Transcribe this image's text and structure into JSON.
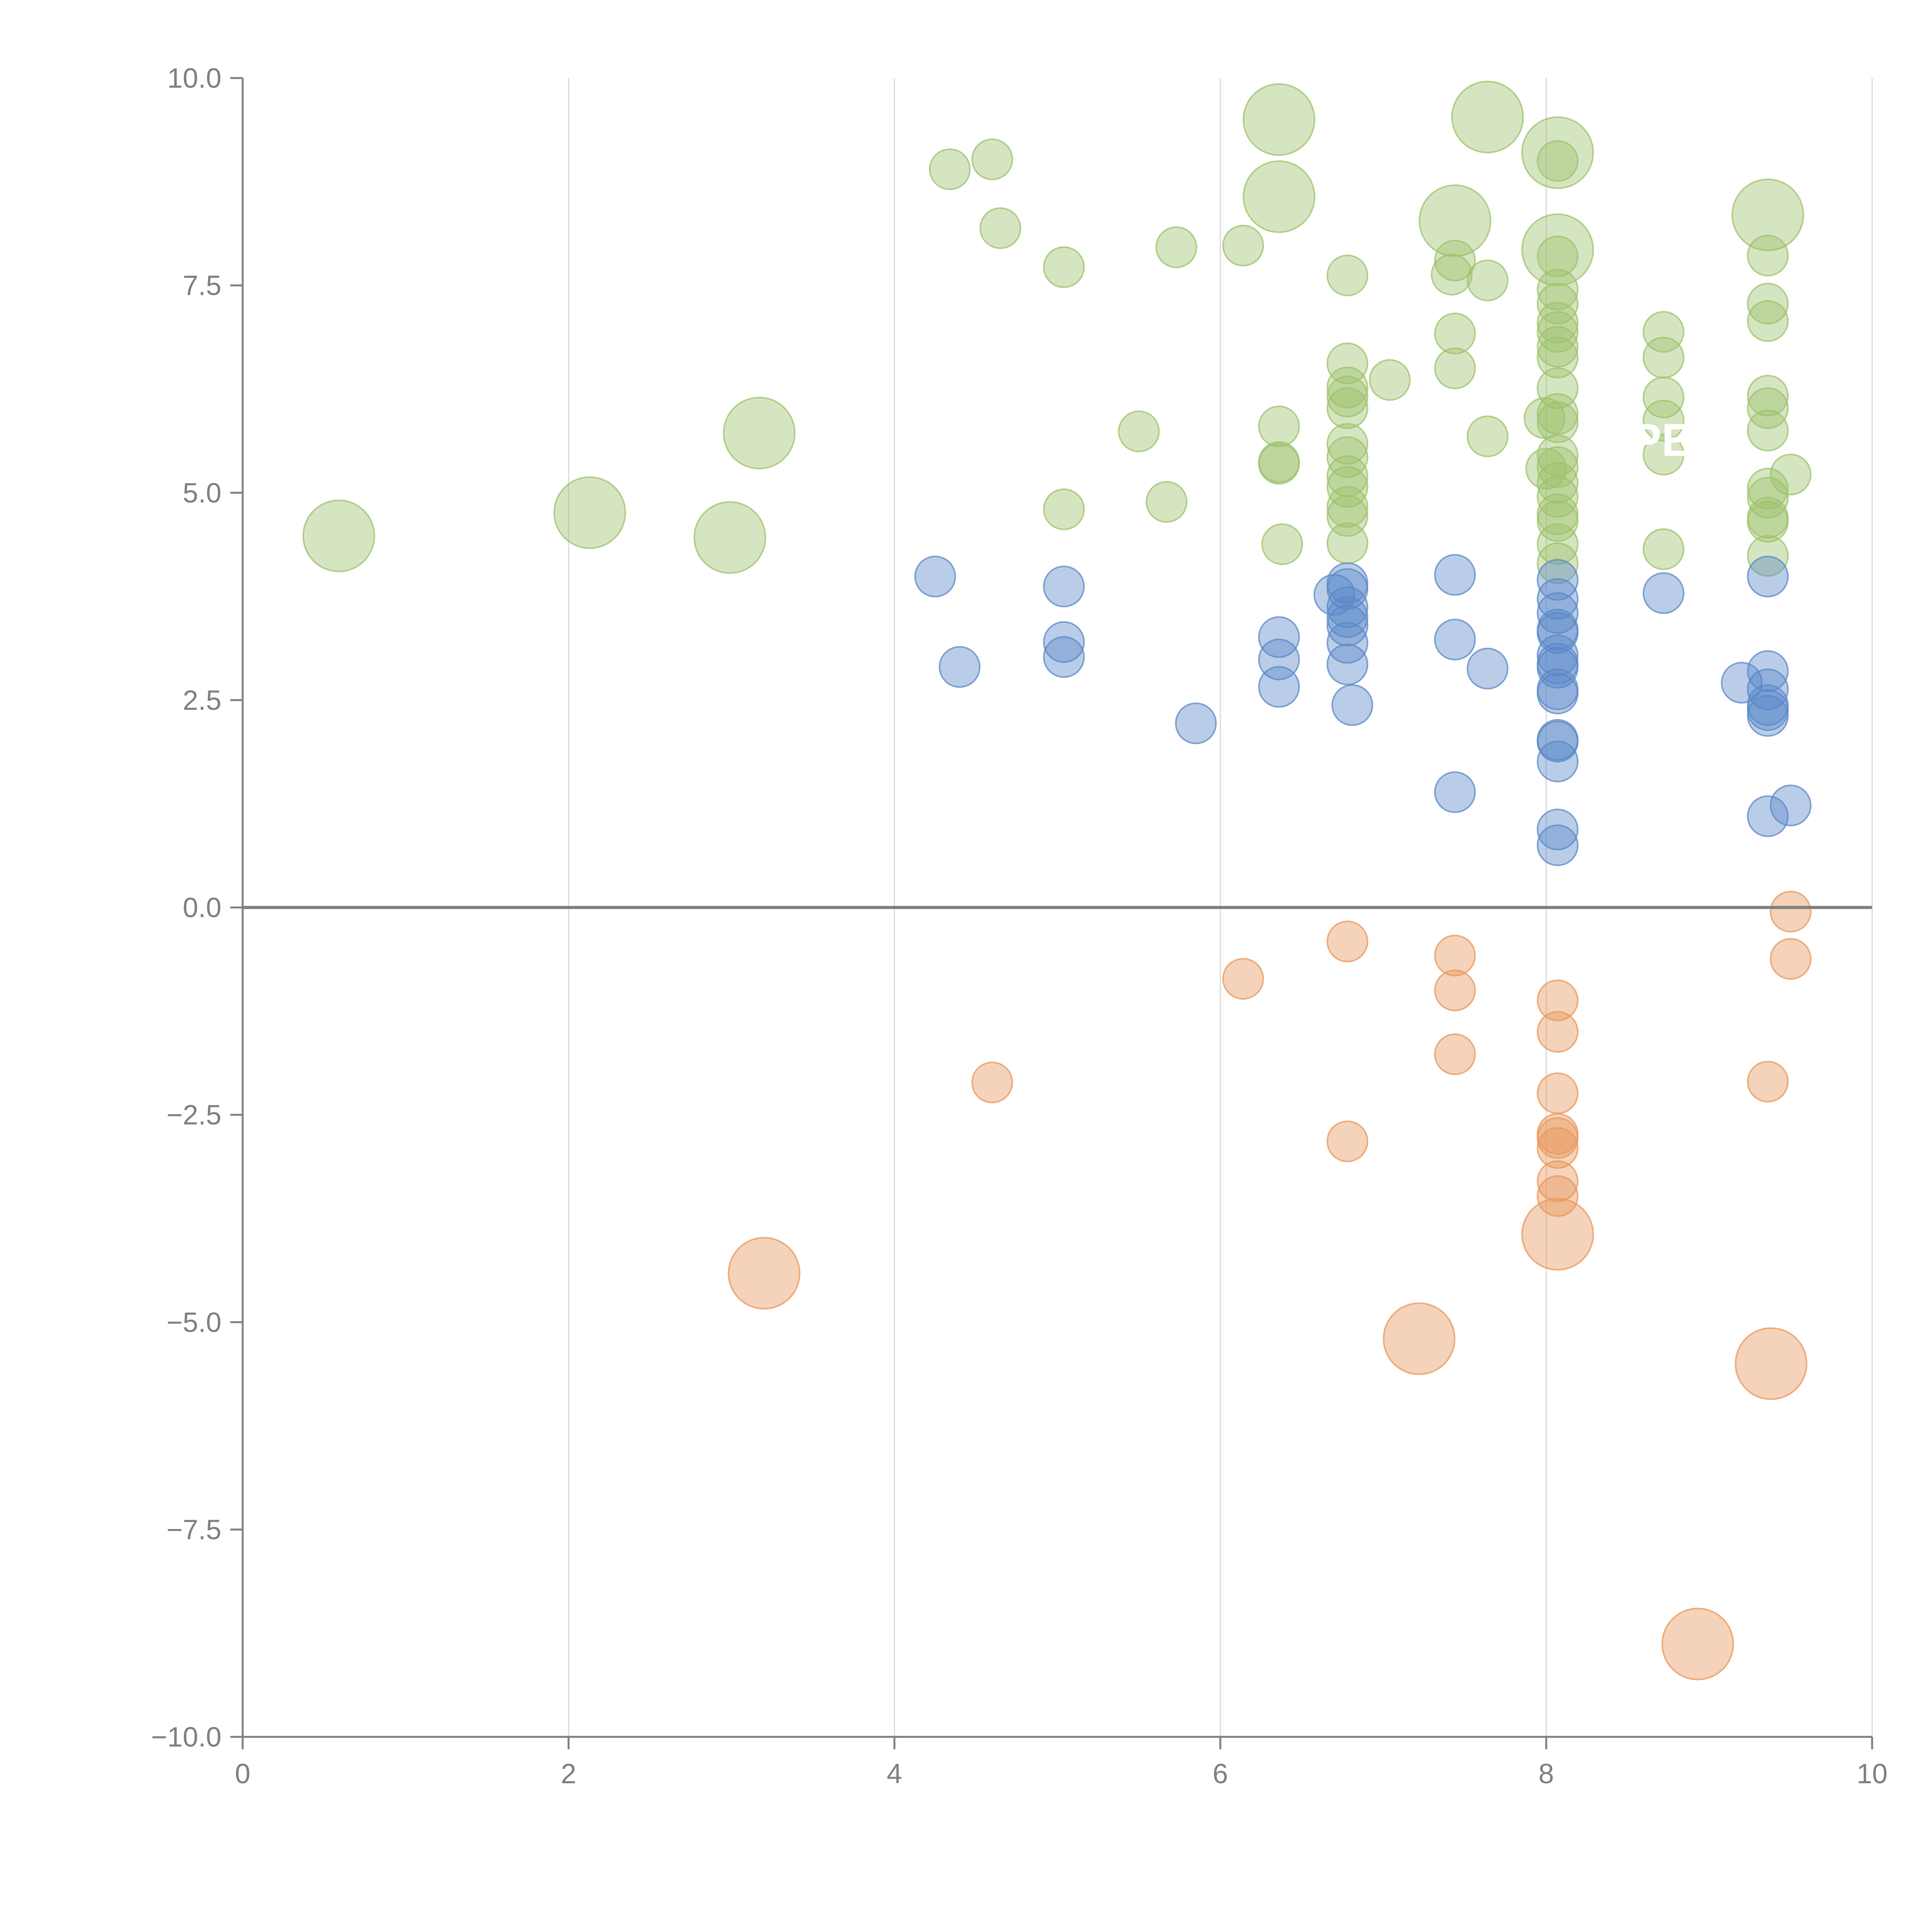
{
  "chart_data": {
    "type": "scatter",
    "title": "",
    "xlabel": "",
    "ylabel": "",
    "xlim": [
      0,
      10
    ],
    "ylim": [
      -10,
      10
    ],
    "x_ticks": [
      0,
      2,
      4,
      6,
      8,
      10
    ],
    "x_tick_labels": [
      "0",
      "2",
      "4",
      "6",
      "8",
      "10"
    ],
    "y_ticks": [
      -10,
      -7.5,
      -5,
      -2.5,
      0,
      2.5,
      5,
      7.5,
      10
    ],
    "y_tick_labels": [
      "−10.0",
      "−7.5",
      "−5.0",
      "−2.5",
      "0.0",
      "2.5",
      "5.0",
      "7.5",
      "10.0"
    ],
    "vertical_grid": true,
    "zero_line": true,
    "inside_label": "PE P",
    "colors": {
      "green": "#9dc26b",
      "blue": "#5b87c7",
      "orange": "#e8975a",
      "axis": "#7f7f7f",
      "grid": "#d9d9d9",
      "zero": "#7f7f7f"
    },
    "series": [
      {
        "name": "green",
        "color": "#9dc26b",
        "points": [
          [
            0.59,
            4.48,
            3
          ],
          [
            2.13,
            4.76,
            3
          ],
          [
            2.99,
            4.46,
            3
          ],
          [
            3.17,
            5.72,
            3
          ],
          [
            6.36,
            9.5,
            3
          ],
          [
            6.36,
            8.57,
            3
          ],
          [
            7.44,
            8.28,
            3
          ],
          [
            7.64,
            9.53,
            3
          ],
          [
            8.07,
            9.1,
            3
          ],
          [
            8.07,
            7.93,
            3
          ],
          [
            9.36,
            8.35,
            3
          ],
          [
            4.34,
            8.9,
            1
          ],
          [
            4.6,
            9.02,
            1
          ],
          [
            4.65,
            8.19,
            1
          ],
          [
            5.04,
            7.72,
            1
          ],
          [
            5.73,
            7.96,
            1
          ],
          [
            6.14,
            7.98,
            1
          ],
          [
            6.78,
            7.62,
            1
          ],
          [
            7.42,
            7.63,
            1
          ],
          [
            7.44,
            7.8,
            1
          ],
          [
            7.64,
            7.56,
            1
          ],
          [
            5.04,
            4.8,
            1
          ],
          [
            5.5,
            5.74,
            1
          ],
          [
            5.67,
            4.89,
            1
          ],
          [
            6.36,
            5.8,
            1
          ],
          [
            6.36,
            5.37,
            1
          ],
          [
            6.36,
            5.35,
            1
          ],
          [
            6.38,
            4.38,
            1
          ],
          [
            6.78,
            6.56,
            1
          ],
          [
            6.78,
            6.27,
            1
          ],
          [
            6.78,
            6.16,
            1
          ],
          [
            6.78,
            6.02,
            1
          ],
          [
            6.78,
            5.59,
            1
          ],
          [
            6.78,
            5.43,
            1
          ],
          [
            6.78,
            5.2,
            1
          ],
          [
            6.78,
            5.07,
            1
          ],
          [
            6.78,
            4.83,
            1
          ],
          [
            6.78,
            4.72,
            1
          ],
          [
            6.78,
            4.39,
            1
          ],
          [
            7.04,
            6.36,
            1
          ],
          [
            7.44,
            6.92,
            1
          ],
          [
            7.44,
            6.5,
            1
          ],
          [
            7.64,
            5.68,
            1
          ],
          [
            8.07,
            7.45,
            1
          ],
          [
            8.07,
            7.28,
            1
          ],
          [
            8.07,
            7.05,
            1
          ],
          [
            8.07,
            6.94,
            1
          ],
          [
            8.07,
            6.76,
            1
          ],
          [
            8.07,
            6.63,
            1
          ],
          [
            8.07,
            6.26,
            1
          ],
          [
            8.07,
            5.95,
            1
          ],
          [
            8.07,
            5.85,
            1
          ],
          [
            8.07,
            5.45,
            1
          ],
          [
            8.07,
            5.31,
            1
          ],
          [
            8.07,
            5.12,
            1
          ],
          [
            8.07,
            4.95,
            1
          ],
          [
            8.07,
            4.74,
            1
          ],
          [
            8.07,
            4.66,
            1
          ],
          [
            8.07,
            4.38,
            1
          ],
          [
            8.07,
            4.15,
            1
          ],
          [
            8.0,
            5.29,
            1
          ],
          [
            7.99,
            5.9,
            1
          ],
          [
            8.07,
            9.0,
            1
          ],
          [
            8.07,
            7.85,
            1
          ],
          [
            8.72,
            6.94,
            1
          ],
          [
            8.72,
            6.63,
            1
          ],
          [
            8.72,
            6.15,
            1
          ],
          [
            8.72,
            5.87,
            1
          ],
          [
            8.72,
            5.46,
            1
          ],
          [
            8.72,
            4.32,
            1
          ],
          [
            9.36,
            7.86,
            1
          ],
          [
            9.36,
            7.28,
            1
          ],
          [
            9.36,
            7.07,
            1
          ],
          [
            9.36,
            6.17,
            1
          ],
          [
            9.36,
            6.02,
            1
          ],
          [
            9.36,
            5.75,
            1
          ],
          [
            9.36,
            5.05,
            1
          ],
          [
            9.36,
            4.94,
            1
          ],
          [
            9.36,
            4.7,
            1
          ],
          [
            9.36,
            4.65,
            1
          ],
          [
            9.36,
            4.24,
            1
          ],
          [
            9.5,
            5.22,
            1
          ]
        ]
      },
      {
        "name": "blue",
        "color": "#5b87c7",
        "points": [
          [
            4.25,
            3.99,
            1
          ],
          [
            4.4,
            2.9,
            1
          ],
          [
            5.04,
            3.87,
            1
          ],
          [
            5.04,
            3.2,
            1
          ],
          [
            5.04,
            3.02,
            1
          ],
          [
            5.85,
            2.22,
            1
          ],
          [
            6.36,
            3.26,
            1
          ],
          [
            6.36,
            2.99,
            1
          ],
          [
            6.36,
            2.66,
            1
          ],
          [
            6.7,
            3.77,
            1
          ],
          [
            6.78,
            3.91,
            1
          ],
          [
            6.78,
            3.84,
            1
          ],
          [
            6.78,
            3.62,
            1
          ],
          [
            6.78,
            3.5,
            1
          ],
          [
            6.78,
            3.4,
            1
          ],
          [
            6.78,
            3.19,
            1
          ],
          [
            6.78,
            2.93,
            1
          ],
          [
            6.81,
            2.44,
            1
          ],
          [
            7.44,
            4.01,
            1
          ],
          [
            7.44,
            3.23,
            1
          ],
          [
            7.44,
            1.39,
            1
          ],
          [
            7.64,
            2.88,
            1
          ],
          [
            8.07,
            3.95,
            1
          ],
          [
            8.07,
            3.72,
            1
          ],
          [
            8.07,
            3.55,
            1
          ],
          [
            8.07,
            3.35,
            1
          ],
          [
            8.07,
            3.31,
            1
          ],
          [
            8.07,
            3.04,
            1
          ],
          [
            8.07,
            2.94,
            1
          ],
          [
            8.07,
            2.89,
            1
          ],
          [
            8.07,
            2.63,
            1
          ],
          [
            8.07,
            2.58,
            1
          ],
          [
            8.07,
            2.02,
            1
          ],
          [
            8.07,
            2.0,
            1
          ],
          [
            8.07,
            1.76,
            1
          ],
          [
            8.07,
            0.94,
            1
          ],
          [
            8.07,
            0.75,
            1
          ],
          [
            8.72,
            3.79,
            1
          ],
          [
            9.36,
            3.99,
            1
          ],
          [
            9.36,
            2.85,
            1
          ],
          [
            9.36,
            2.63,
            1
          ],
          [
            9.36,
            2.44,
            1
          ],
          [
            9.36,
            2.38,
            1
          ],
          [
            9.36,
            2.31,
            1
          ],
          [
            9.2,
            2.71,
            1
          ],
          [
            9.36,
            1.1,
            1
          ],
          [
            9.5,
            1.23,
            1
          ]
        ]
      },
      {
        "name": "orange",
        "color": "#e8975a",
        "points": [
          [
            3.2,
            -4.41,
            3
          ],
          [
            7.22,
            -5.2,
            3
          ],
          [
            8.07,
            -3.94,
            3
          ],
          [
            9.38,
            -5.5,
            3
          ],
          [
            8.93,
            -8.88,
            3
          ],
          [
            4.6,
            -2.11,
            1
          ],
          [
            6.14,
            -0.86,
            1
          ],
          [
            6.78,
            -0.41,
            1
          ],
          [
            6.78,
            -2.82,
            1
          ],
          [
            7.44,
            -0.58,
            1
          ],
          [
            7.44,
            -1.0,
            1
          ],
          [
            7.44,
            -1.77,
            1
          ],
          [
            8.07,
            -1.12,
            1
          ],
          [
            8.07,
            -1.5,
            1
          ],
          [
            8.07,
            -2.24,
            1
          ],
          [
            8.07,
            -2.73,
            1
          ],
          [
            8.07,
            -2.78,
            1
          ],
          [
            8.07,
            -2.9,
            1
          ],
          [
            8.07,
            -3.3,
            1
          ],
          [
            8.07,
            -3.48,
            1
          ],
          [
            9.36,
            -2.1,
            1
          ],
          [
            9.5,
            -0.05,
            1
          ],
          [
            9.5,
            -0.62,
            1
          ]
        ]
      }
    ]
  }
}
